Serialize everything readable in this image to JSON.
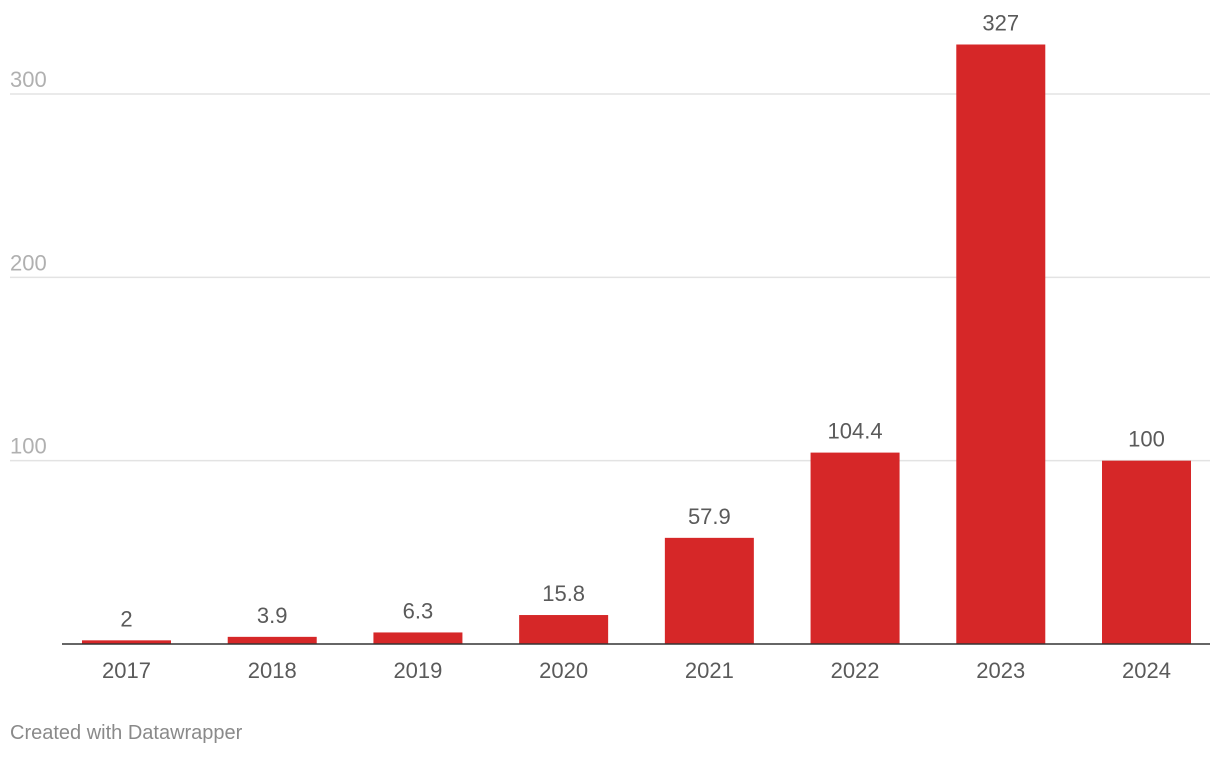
{
  "chart_data": {
    "type": "bar",
    "categories": [
      "2017",
      "2018",
      "2019",
      "2020",
      "2021",
      "2022",
      "2023",
      "2024"
    ],
    "values": [
      2,
      3.9,
      6.3,
      15.8,
      57.9,
      104.4,
      327,
      100
    ],
    "value_labels": [
      "2",
      "3.9",
      "6.3",
      "15.8",
      "57.9",
      "104.4",
      "327",
      "100"
    ],
    "title": "",
    "xlabel": "",
    "ylabel": "",
    "ylim": [
      0,
      327
    ],
    "yticks": [
      100,
      200,
      300
    ],
    "grid": true,
    "legend": "none",
    "bar_color": "#d62728"
  },
  "footer": {
    "credit": "Created with Datawrapper"
  }
}
